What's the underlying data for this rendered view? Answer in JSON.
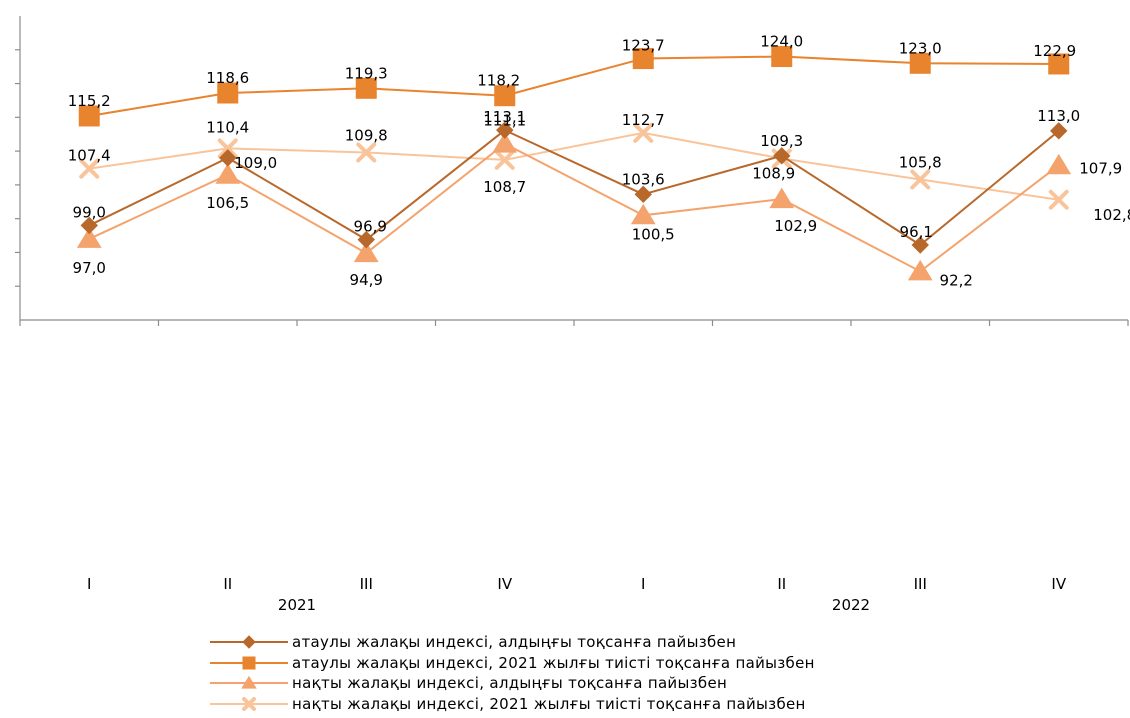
{
  "chart_data": {
    "type": "line",
    "categories": [
      "I",
      "II",
      "III",
      "IV",
      "I",
      "II",
      "III",
      "IV"
    ],
    "groups": [
      {
        "label": "2021",
        "from": 0,
        "to": 3
      },
      {
        "label": "2022",
        "from": 4,
        "to": 7
      }
    ],
    "ylim": [
      85,
      130
    ],
    "grid": false,
    "legend_position": "bottom",
    "series": [
      {
        "name": "атаулы жалақы индексі, алдыңғы тоқсанға пайызбен",
        "color": "#B8682A",
        "marker": "diamond",
        "values": [
          99.0,
          109.0,
          96.9,
          113.1,
          103.6,
          109.3,
          96.1,
          113.0
        ],
        "labels": [
          "99,0",
          "109,0",
          "96,9",
          "113,1",
          "103,6",
          "109,3",
          "96,1",
          "113,0"
        ]
      },
      {
        "name": "атаулы жалақы индексі, 2021 жылғы тиісті тоқсанға пайызбен",
        "color": "#E8832E",
        "marker": "square",
        "values": [
          115.2,
          118.6,
          119.3,
          118.2,
          123.7,
          124.0,
          123.0,
          122.9
        ],
        "labels": [
          "115,2",
          "118,6",
          "119,3",
          "118,2",
          "123,7",
          "124,0",
          "123,0",
          "122,9"
        ]
      },
      {
        "name": "нақты жалақы индексі, алдыңғы тоқсанға пайызбен",
        "color": "#F4A36C",
        "marker": "triangle",
        "values": [
          97.0,
          106.5,
          94.9,
          111.1,
          100.5,
          102.9,
          92.2,
          107.9
        ],
        "labels": [
          "97,0",
          "106,5",
          "94,9",
          "111,1",
          "100,5",
          "102,9",
          "92,2",
          "107,9"
        ]
      },
      {
        "name": "нақты жалақы индексі, 2021 жылғы тиісті тоқсанға пайызбен",
        "color": "#F9C49A",
        "marker": "x",
        "values": [
          107.4,
          110.4,
          109.8,
          108.7,
          112.7,
          108.9,
          105.8,
          102.8
        ],
        "labels": [
          "107,4",
          "110,4",
          "109,8",
          "108,7",
          "112,7",
          "108,9",
          "105,8",
          "102,8"
        ]
      }
    ]
  }
}
